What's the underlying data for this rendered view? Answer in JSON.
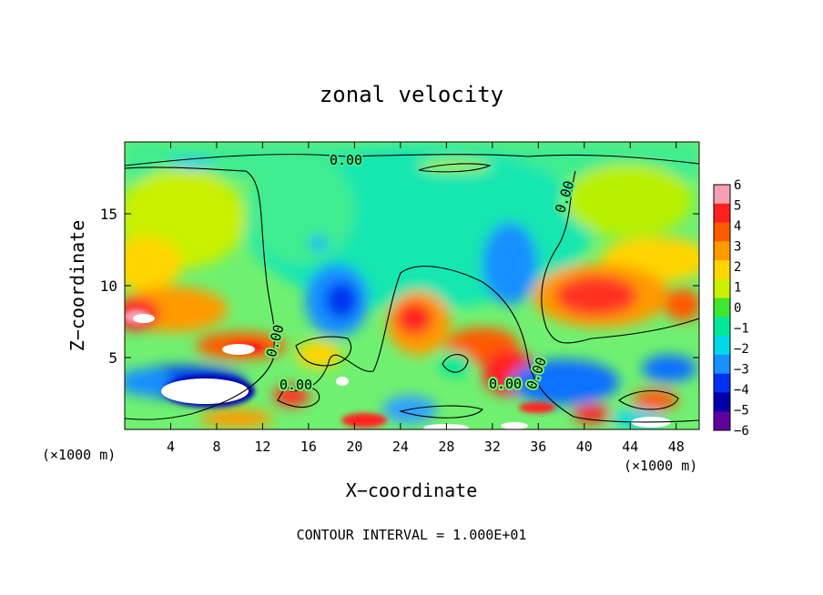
{
  "chart_data": {
    "type": "heatmap",
    "title": "zonal velocity",
    "xlabel": "X−coordinate",
    "ylabel": "Z−coordinate",
    "x_unit_left": "(×1000 m)",
    "x_unit_right": "(×1000 m)",
    "xlim": [
      0,
      50
    ],
    "ylim": [
      0,
      20
    ],
    "xticks": [
      4,
      8,
      12,
      16,
      20,
      24,
      28,
      32,
      36,
      40,
      44,
      48
    ],
    "yticks": [
      5,
      10,
      15
    ],
    "colorbar": {
      "ticks": [
        6,
        5,
        4,
        3,
        2,
        1,
        0,
        -1,
        -2,
        -3,
        -4,
        -5,
        -6
      ],
      "colors": [
        "#f4a0b0",
        "#ff2020",
        "#ff5a00",
        "#ff9a00",
        "#ffd400",
        "#c8f000",
        "#3ee630",
        "#00e89a",
        "#00d8e8",
        "#1890ff",
        "#0030f0",
        "#0000a8",
        "#6000a0"
      ]
    },
    "contour_labels": [
      "0.00",
      "0.00",
      "0.00",
      "0.00",
      "0.00",
      "0.00"
    ],
    "footer": "CONTOUR INTERVAL = 1.000E+01",
    "grid": false,
    "legend": "colorbar-right"
  }
}
